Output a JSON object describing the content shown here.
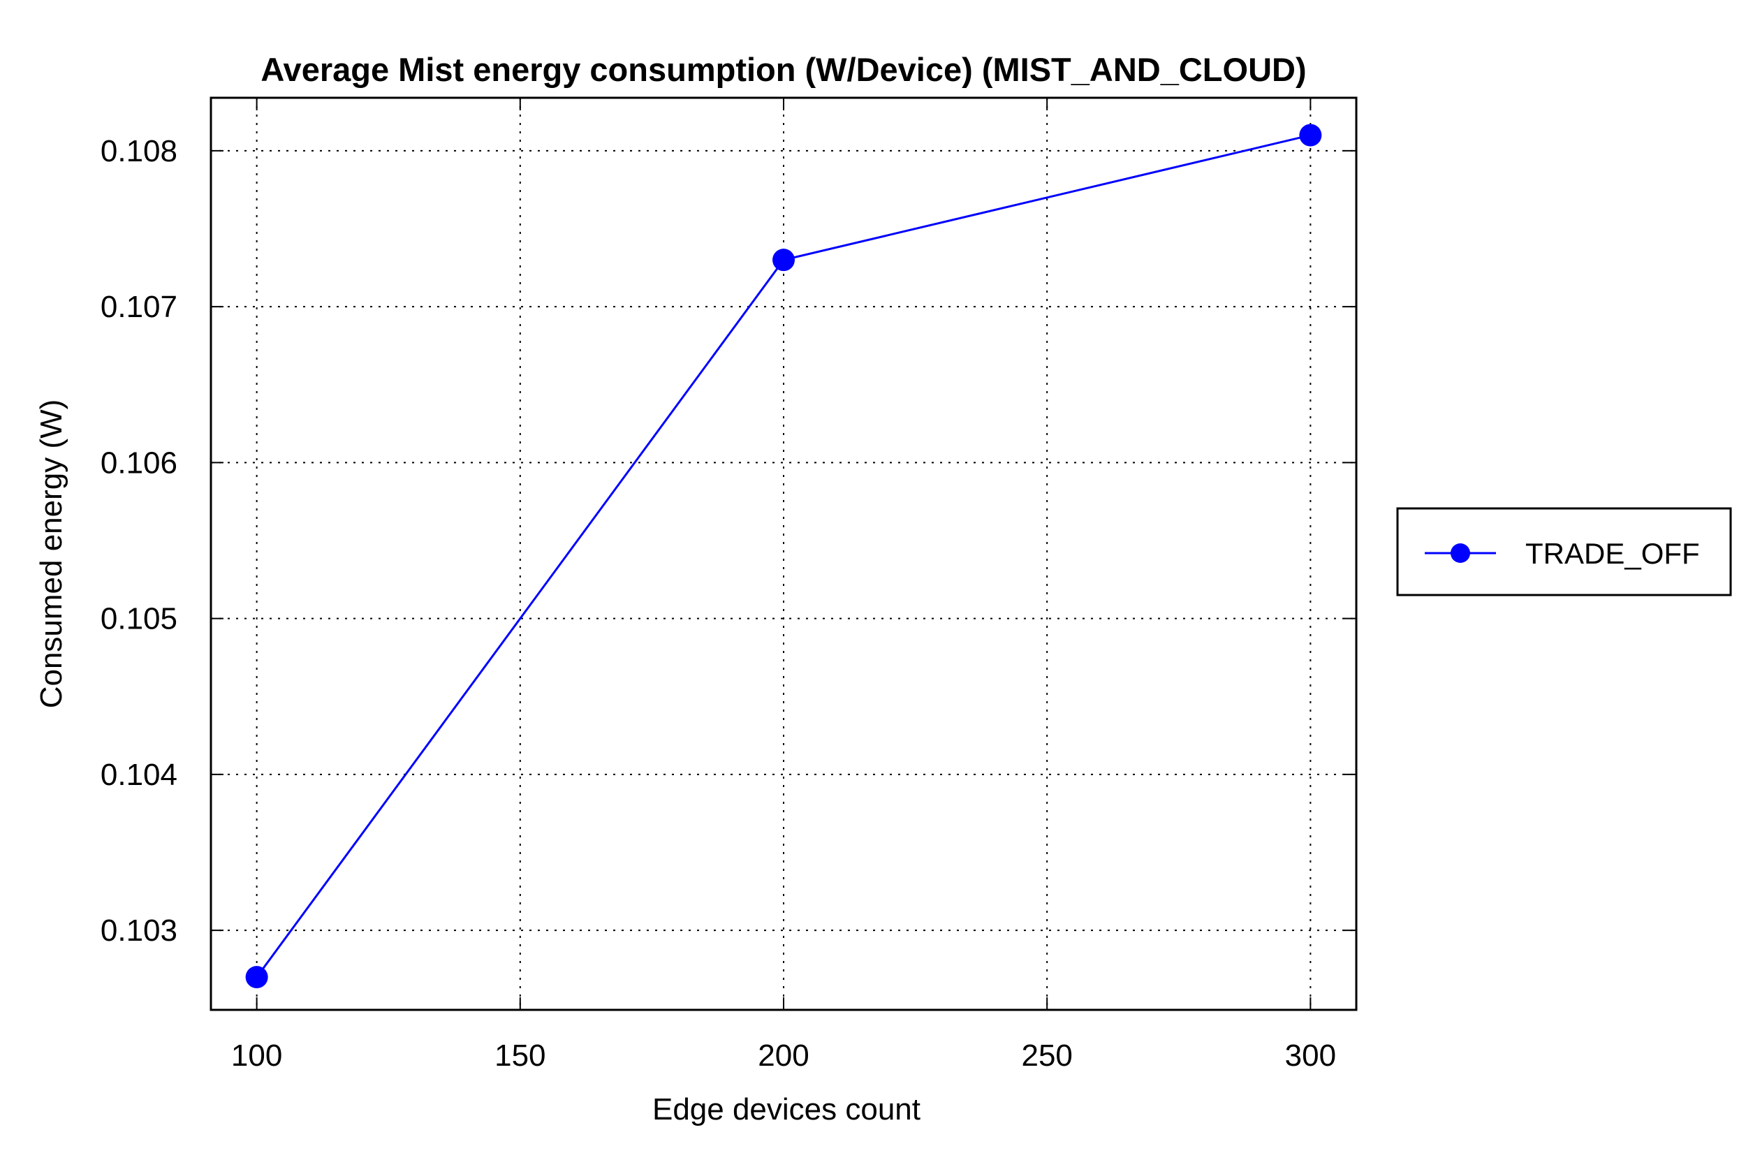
{
  "chart_data": {
    "type": "line",
    "title": "Average Mist energy consumption (W/Device) (MIST_AND_CLOUD)",
    "xlabel": "Edge devices count",
    "ylabel": "Consumed energy (W)",
    "x": [
      100,
      200,
      300
    ],
    "xlim": [
      91.3,
      308.7
    ],
    "ylim": [
      0.10249,
      0.10834
    ],
    "x_ticks": [
      100,
      150,
      200,
      250,
      300
    ],
    "x_tick_labels": [
      "100",
      "150",
      "200",
      "250",
      "300"
    ],
    "y_ticks": [
      0.103,
      0.104,
      0.105,
      0.106,
      0.107,
      0.108
    ],
    "y_tick_labels": [
      "0.103",
      "0.104",
      "0.105",
      "0.106",
      "0.107",
      "0.108"
    ],
    "series": [
      {
        "name": "TRADE_OFF",
        "values": [
          0.1027,
          0.1073,
          0.1081
        ],
        "color": "#0000ff",
        "marker": "circle"
      }
    ],
    "grid": true,
    "grid_style": "dotted",
    "legend_position": "right"
  }
}
